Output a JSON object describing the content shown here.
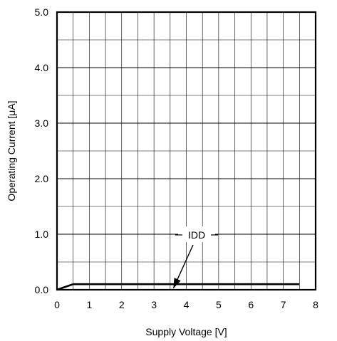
{
  "chart_data": {
    "type": "line",
    "title": "",
    "xlabel": "Supply Voltage [V]",
    "ylabel": "Operating Current  [μA]",
    "xlim": [
      0,
      8
    ],
    "ylim": [
      0,
      5
    ],
    "x_ticks": [
      "0",
      "1",
      "2",
      "3",
      "4",
      "5",
      "6",
      "7",
      "8"
    ],
    "y_ticks": [
      "0.0",
      "1.0",
      "2.0",
      "3.0",
      "4.0",
      "5.0"
    ],
    "grid": true,
    "series": [
      {
        "name": "IDD",
        "x": [
          0,
          0.5,
          7.5
        ],
        "y": [
          0.0,
          0.1,
          0.1
        ]
      }
    ],
    "annotations": [
      {
        "text": "IDD",
        "points_to": {
          "x": 3.6,
          "y": 0.0
        }
      }
    ]
  }
}
